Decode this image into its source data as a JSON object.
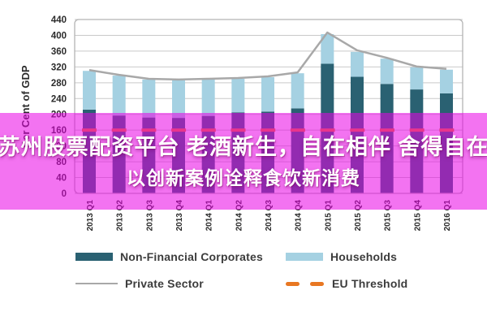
{
  "overlay_banner": {
    "line1": "苏州股票配资平台 老酒新生，自在相伴 舍得自在",
    "line2": "以创新案例诠释食饮新消费",
    "band_color": "rgba(234,0,230,0.55)",
    "text_color": "#ffffff"
  },
  "chart_data": {
    "type": "bar",
    "stacked": true,
    "title": "",
    "xlabel": "",
    "ylabel": "Per Cent of GDP",
    "ylim": [
      0,
      440
    ],
    "ytick_step": 40,
    "grid": true,
    "legend_position": "bottom",
    "categories": [
      "2013 Q1",
      "2013 Q2",
      "2013 Q3",
      "2013 Q4",
      "2014 Q1",
      "2014 Q2",
      "2014 Q3",
      "2014 Q4",
      "2015 Q1",
      "2015 Q2",
      "2015 Q3",
      "2015 Q4",
      "2016 Q1"
    ],
    "series": [
      {
        "name": "Non-Financial Corporates",
        "type": "bar",
        "color": "#2a6172",
        "values": [
          212,
          197,
          192,
          191,
          196,
          205,
          207,
          215,
          328,
          295,
          277,
          263,
          253
        ]
      },
      {
        "name": "Households",
        "type": "bar",
        "color": "#a5d1e2",
        "values": [
          98,
          101,
          96,
          95,
          92,
          85,
          87,
          89,
          75,
          63,
          64,
          56,
          60
        ]
      },
      {
        "name": "Private Sector",
        "type": "line",
        "color": "#a8a8a8",
        "values": [
          312,
          300,
          290,
          288,
          290,
          292,
          296,
          306,
          407,
          362,
          343,
          321,
          315
        ]
      },
      {
        "name": "EU Threshold",
        "type": "dashed-line",
        "color": "#e87722",
        "value": 160
      }
    ],
    "axis_text_color": "#2b2b2b",
    "gridline_color": "#c9c9c9",
    "plot_border_color": "#b3b3b3"
  },
  "legend": {
    "items": [
      {
        "label": "Non-Financial Corporates",
        "swatch": "bar",
        "color": "#2a6172"
      },
      {
        "label": "Households",
        "swatch": "bar",
        "color": "#a5d1e2"
      },
      {
        "label": "Private Sector",
        "swatch": "line",
        "color": "#a8a8a8"
      },
      {
        "label": "EU Threshold",
        "swatch": "dashes",
        "color": "#e87722"
      }
    ]
  }
}
